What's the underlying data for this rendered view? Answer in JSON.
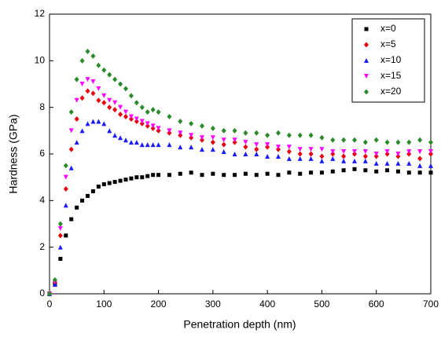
{
  "chart_data": {
    "type": "scatter",
    "xlabel": "Penetration depth (nm)",
    "ylabel": "Hardness (GPa)",
    "x": [
      0,
      10,
      20,
      30,
      40,
      50,
      60,
      70,
      80,
      90,
      100,
      110,
      120,
      130,
      140,
      150,
      160,
      170,
      180,
      190,
      200,
      220,
      240,
      260,
      280,
      300,
      320,
      340,
      360,
      380,
      400,
      420,
      440,
      460,
      480,
      500,
      520,
      540,
      560,
      580,
      600,
      620,
      640,
      660,
      680,
      700
    ],
    "series": [
      {
        "name": "x=0",
        "color": "#000000",
        "marker": "square",
        "values": [
          0,
          0.4,
          1.5,
          2.5,
          3.2,
          3.7,
          4.0,
          4.2,
          4.4,
          4.6,
          4.7,
          4.75,
          4.8,
          4.85,
          4.9,
          4.95,
          5.0,
          5.0,
          5.05,
          5.1,
          5.1,
          5.1,
          5.15,
          5.2,
          5.1,
          5.15,
          5.1,
          5.1,
          5.15,
          5.1,
          5.15,
          5.1,
          5.2,
          5.15,
          5.2,
          5.2,
          5.25,
          5.3,
          5.35,
          5.3,
          5.25,
          5.3,
          5.25,
          5.2,
          5.2,
          5.2
        ]
      },
      {
        "name": "x=5",
        "color": "#e8000b",
        "marker": "diamond",
        "values": [
          0,
          0.5,
          2.5,
          4.5,
          6.2,
          7.5,
          8.4,
          8.7,
          8.6,
          8.3,
          8.2,
          8.0,
          7.9,
          7.7,
          7.6,
          7.5,
          7.4,
          7.3,
          7.2,
          7.1,
          7.0,
          6.9,
          6.8,
          6.7,
          6.6,
          6.5,
          6.4,
          6.5,
          6.3,
          6.2,
          6.3,
          6.2,
          6.1,
          6.0,
          6.0,
          5.9,
          6.0,
          5.9,
          6.0,
          5.9,
          5.9,
          6.0,
          5.9,
          6.0,
          5.8,
          6.0
        ]
      },
      {
        "name": "x=10",
        "color": "#1a1aff",
        "marker": "triangle-up",
        "values": [
          0,
          0.4,
          2.0,
          3.8,
          5.4,
          6.5,
          7.0,
          7.3,
          7.4,
          7.4,
          7.3,
          7.0,
          6.8,
          6.7,
          6.6,
          6.5,
          6.5,
          6.4,
          6.4,
          6.4,
          6.4,
          6.4,
          6.3,
          6.3,
          6.2,
          6.2,
          6.1,
          6.0,
          6.0,
          6.0,
          5.9,
          5.9,
          5.8,
          5.8,
          5.8,
          5.7,
          5.8,
          5.7,
          5.7,
          5.7,
          5.6,
          5.6,
          5.6,
          5.6,
          5.5,
          5.5
        ]
      },
      {
        "name": "x=15",
        "color": "#ff00ff",
        "marker": "triangle-down",
        "values": [
          0,
          0.5,
          2.8,
          5.0,
          7.0,
          8.3,
          9.0,
          9.2,
          9.1,
          8.8,
          8.5,
          8.3,
          8.2,
          8.0,
          7.8,
          7.6,
          7.5,
          7.4,
          7.3,
          7.2,
          7.1,
          7.0,
          6.9,
          6.8,
          6.7,
          6.7,
          6.6,
          6.6,
          6.5,
          6.4,
          6.4,
          6.3,
          6.3,
          6.2,
          6.2,
          6.2,
          6.1,
          6.1,
          6.1,
          6.1,
          6.0,
          6.1,
          6.0,
          6.1,
          6.1,
          6.1
        ]
      },
      {
        "name": "x=20",
        "color": "#2a8a2a",
        "marker": "diamond",
        "values": [
          0,
          0.6,
          3.0,
          5.5,
          7.8,
          9.2,
          10.0,
          10.4,
          10.2,
          9.8,
          9.6,
          9.4,
          9.2,
          9.0,
          8.8,
          8.5,
          8.2,
          8.0,
          7.8,
          7.9,
          7.8,
          7.6,
          7.4,
          7.3,
          7.2,
          7.1,
          7.0,
          7.0,
          6.9,
          6.9,
          6.8,
          6.9,
          6.8,
          6.8,
          6.8,
          6.7,
          6.6,
          6.6,
          6.6,
          6.5,
          6.6,
          6.5,
          6.5,
          6.5,
          6.6,
          6.5
        ]
      }
    ],
    "xlim": [
      0,
      700
    ],
    "xticks": [
      0,
      100,
      200,
      300,
      400,
      500,
      600,
      700
    ],
    "ylim": [
      0,
      12
    ],
    "yticks": [
      0,
      2,
      4,
      6,
      8,
      10,
      12
    ],
    "legend": "top-right"
  }
}
